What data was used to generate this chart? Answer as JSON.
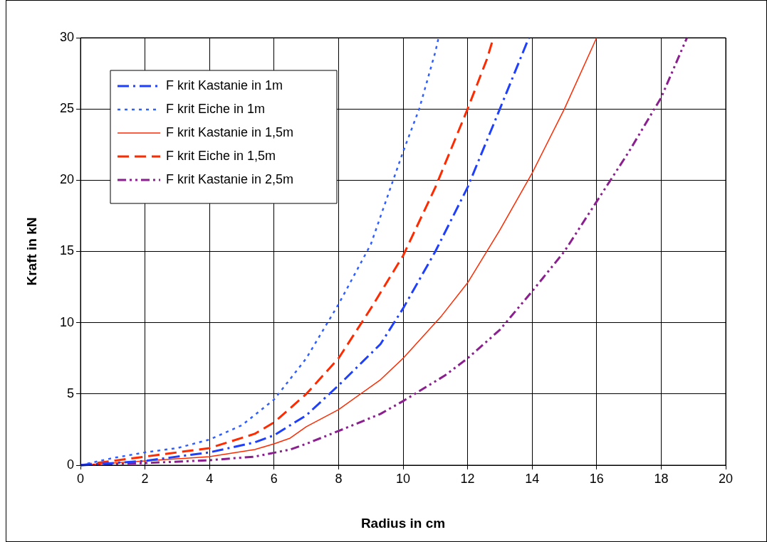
{
  "chart_data": {
    "type": "line",
    "xlabel": "Radius in cm",
    "ylabel": "Kraft in kN",
    "xlim": [
      0,
      20
    ],
    "xticks": [
      0,
      2,
      4,
      6,
      8,
      10,
      12,
      14,
      16,
      18,
      20
    ],
    "ylim": [
      0,
      30
    ],
    "yticks": [
      0,
      5,
      10,
      15,
      20,
      25,
      30
    ],
    "grid": true,
    "legend": "top left",
    "marker": "none",
    "series": [
      {
        "name": "F krit Kastanie in 1m",
        "color": "#1f3fff",
        "line_style": "dashdot",
        "x": [
          0,
          2,
          4,
          5.4,
          6,
          7,
          8,
          9.3,
          10,
          11,
          12,
          13,
          13.9
        ],
        "values": [
          0,
          0.3,
          0.9,
          1.6,
          2.1,
          3.5,
          5.6,
          8.5,
          11,
          15,
          19.5,
          25,
          30
        ]
      },
      {
        "name": "F krit Eiche in 1m",
        "color": "#2f5fff",
        "line_style": "dotted",
        "x": [
          0,
          1,
          2,
          3,
          4,
          5,
          6,
          7,
          8,
          9,
          10,
          10.5,
          11,
          11.1
        ],
        "values": [
          0,
          0.5,
          0.9,
          1.2,
          1.8,
          2.8,
          4.6,
          7.5,
          11.3,
          15.5,
          22,
          25,
          29,
          30
        ]
      },
      {
        "name": "F krit Kastanie in 1,5m",
        "color": "#ff2a00",
        "line_style": "solid",
        "x": [
          0,
          2,
          4,
          5.4,
          6,
          6.5,
          7,
          8,
          9.3,
          10,
          11.2,
          12,
          13,
          14,
          15,
          16
        ],
        "values": [
          0,
          0.3,
          0.6,
          1.1,
          1.5,
          1.9,
          2.7,
          3.9,
          6,
          7.5,
          10.5,
          12.8,
          16.5,
          20.5,
          25,
          30
        ]
      },
      {
        "name": "F krit Eiche in 1,5m",
        "color": "#ff2a00",
        "line_style": "dashed",
        "x": [
          0,
          2,
          4,
          5.4,
          6,
          7,
          8,
          9,
          10,
          11,
          12,
          12.6,
          12.8
        ],
        "values": [
          0,
          0.6,
          1.2,
          2.2,
          3,
          5,
          7.5,
          11,
          14.7,
          19.5,
          25,
          28.5,
          30
        ]
      },
      {
        "name": "F krit Kastanie in 2,5m",
        "color": "#8b1f8f",
        "line_style": "dashdotdot",
        "x": [
          0,
          2,
          4,
          5.4,
          6.5,
          7,
          8,
          9.3,
          10,
          11.3,
          12,
          13,
          14,
          15,
          16,
          17,
          18,
          18.8
        ],
        "values": [
          0,
          0.15,
          0.35,
          0.6,
          1.1,
          1.5,
          2.4,
          3.6,
          4.5,
          6.3,
          7.5,
          9.5,
          12.2,
          15,
          18.5,
          22,
          25.8,
          30
        ]
      }
    ]
  }
}
